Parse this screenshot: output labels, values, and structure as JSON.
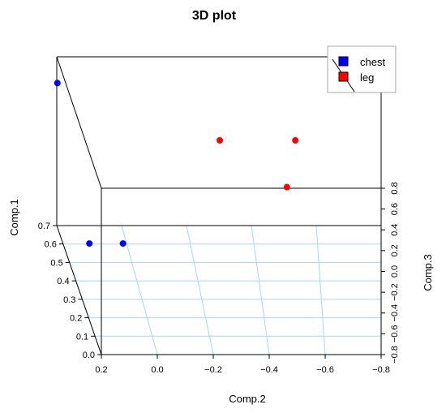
{
  "chart_data": {
    "type": "scatter",
    "title": "3D plot",
    "xlabel": "Comp.2",
    "ylabel": "Comp.3",
    "zlabel": "Comp.1",
    "x_ticks": [
      "0.2",
      "0.0",
      "−0.2",
      "−0.4",
      "−0.6",
      "−0.8"
    ],
    "y_ticks": [
      "−0.8",
      "−0.6",
      "−0.4",
      "−0.2",
      "0.0",
      "0.2",
      "0.4",
      "0.6",
      "0.8"
    ],
    "z_ticks": [
      "0.0",
      "0.1",
      "0.2",
      "0.3",
      "0.4",
      "0.5",
      "0.6",
      "0.7"
    ],
    "xlim": [
      0.2,
      -0.8
    ],
    "ylim": [
      -0.8,
      0.8
    ],
    "zlim": [
      0.0,
      0.7
    ],
    "grid": true,
    "legend_position": "top-right",
    "series": [
      {
        "name": "chest",
        "color": "#0000ff",
        "points": [
          {
            "x": 0.2,
            "y": 0.65,
            "z": 0.69
          },
          {
            "x": 0.22,
            "y": 0.1,
            "z": 0.1
          },
          {
            "x": 0.1,
            "y": 0.1,
            "z": 0.1
          }
        ]
      },
      {
        "name": "leg",
        "color": "#ff0000",
        "points": [
          {
            "x": -0.36,
            "y": 0.25,
            "z": 0.6
          },
          {
            "x": -0.6,
            "y": -0.2,
            "z": 0.6
          },
          {
            "x": -0.63,
            "y": 0.25,
            "z": 0.6
          }
        ]
      }
    ]
  }
}
